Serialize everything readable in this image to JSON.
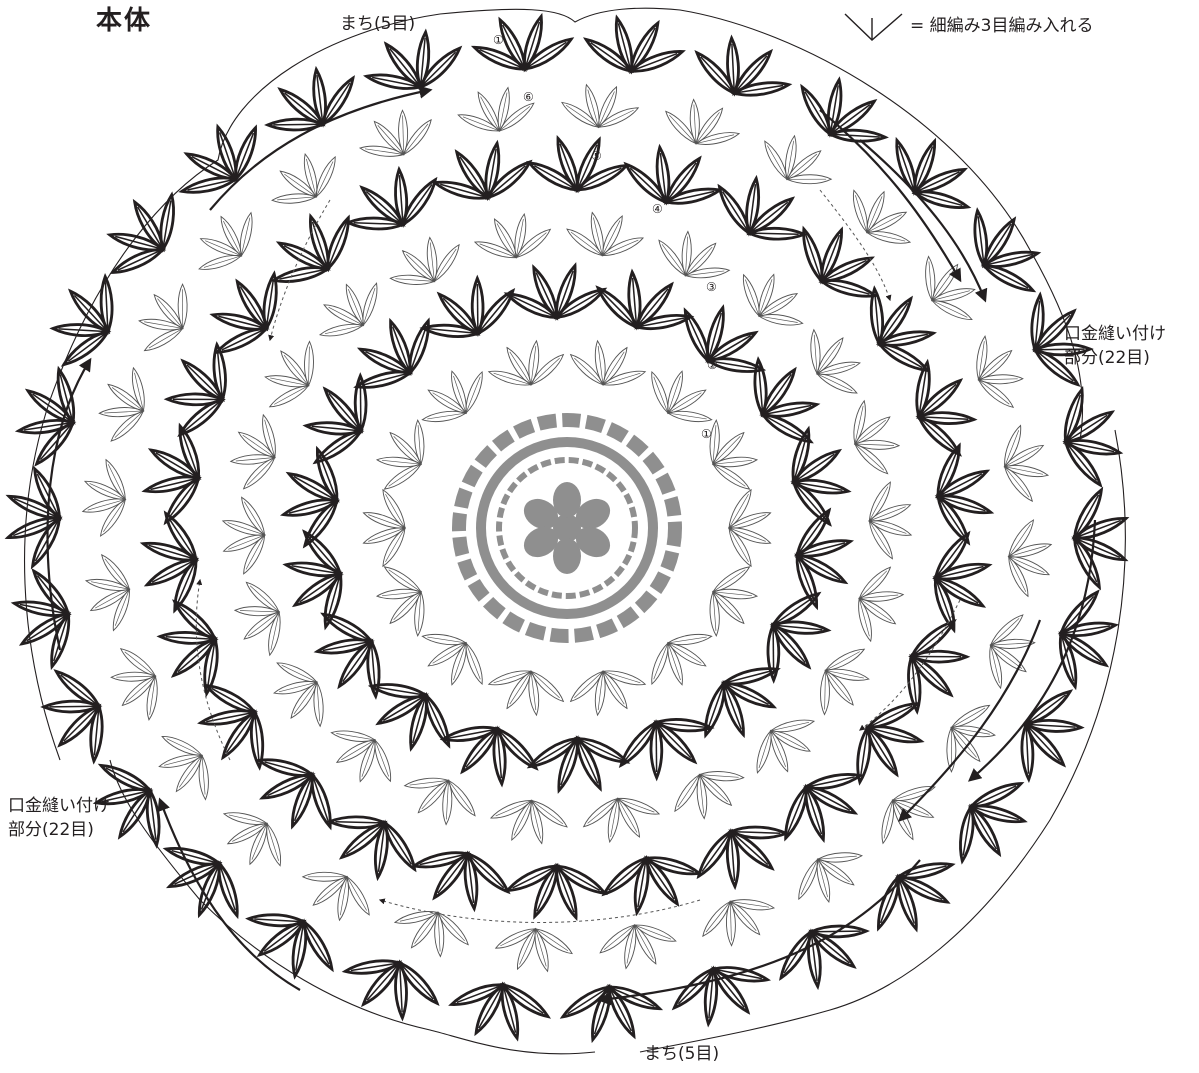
{
  "title": "本体",
  "legend": {
    "symbol": "v-three-stitch-symbol",
    "text": "= 細編み3目編み入れる"
  },
  "labels": {
    "gusset_top": "まち(5目)",
    "gusset_bottom": "まち(5目)",
    "clasp_right_1": "口金縫い付け",
    "clasp_right_2": "部分(22目)",
    "clasp_left_1": "口金縫い付け",
    "clasp_left_2": "部分(22目)"
  },
  "round_markers": [
    "①",
    "②",
    "③",
    "④",
    "⑤",
    "⑥",
    "①"
  ],
  "colors": {
    "ink": "#231f20",
    "center": "#8f8f8f",
    "thin": "#555555"
  }
}
